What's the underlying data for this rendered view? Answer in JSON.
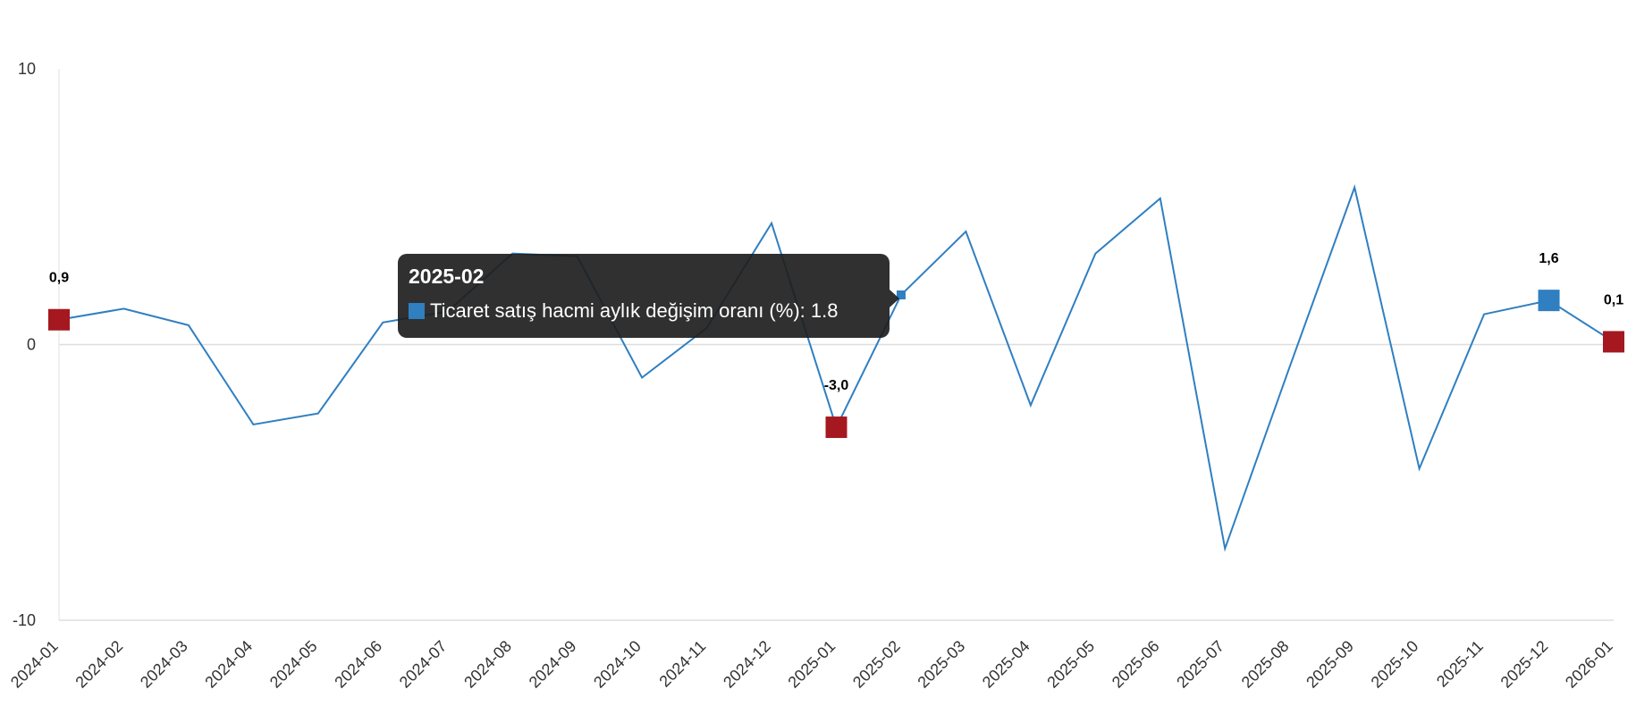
{
  "chart_data": {
    "type": "line",
    "categories": [
      "2024-01",
      "2024-02",
      "2024-03",
      "2024-04",
      "2024-05",
      "2024-06",
      "2024-07",
      "2024-08",
      "2024-09",
      "2024-10",
      "2024-11",
      "2024-12",
      "2025-01",
      "2025-02",
      "2025-03",
      "2025-04",
      "2025-05",
      "2025-06",
      "2025-07",
      "2025-08",
      "2025-09",
      "2025-10",
      "2025-11",
      "2025-12",
      "2026-01"
    ],
    "series": [
      {
        "name": "Ticaret satış hacmi aylık değişim oranı (%)",
        "values": [
          0.9,
          1.3,
          0.7,
          -2.9,
          -2.5,
          0.8,
          1.2,
          3.3,
          3.2,
          -1.2,
          0.6,
          4.4,
          -3.0,
          1.8,
          4.1,
          -2.2,
          3.3,
          5.3,
          -7.4,
          -0.8,
          5.7,
          -4.5,
          1.1,
          1.6,
          0.1
        ]
      }
    ],
    "ylim": [
      -10,
      10
    ],
    "yticks": [
      "-10",
      "0",
      "10"
    ],
    "grid": "horizontal zero line",
    "legend": "none",
    "line_color": "#2f7fc1",
    "highlight_color": "#a51820",
    "highlight_points": [
      {
        "index": 0,
        "label": "0,9",
        "color": "#a51820"
      },
      {
        "index": 12,
        "label": "-3,0",
        "color": "#a51820"
      },
      {
        "index": 23,
        "label": "1,6",
        "color": "#2f7fc1"
      },
      {
        "index": 24,
        "label": "0,1",
        "color": "#a51820"
      }
    ]
  },
  "tooltip": {
    "title": "2025-02",
    "text": "Ticaret satış hacmi aylık değişim oranı (%): 1.8",
    "swatch_color": "#2f7fc1",
    "active_index": 13
  }
}
